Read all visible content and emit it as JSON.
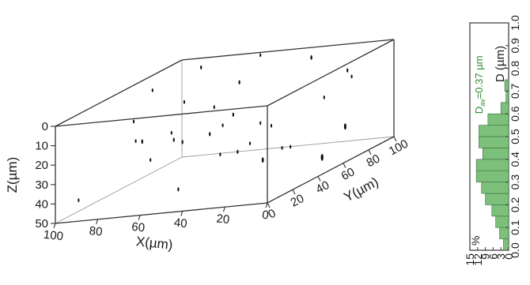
{
  "chart_data": [
    {
      "type": "scatter",
      "subtype": "3d-box",
      "axes": {
        "x": {
          "label": "X(µm)",
          "range": [
            0,
            100
          ],
          "ticks": [
            100,
            80,
            60,
            40,
            20,
            0
          ]
        },
        "y": {
          "label": "Y(µm)",
          "range": [
            0,
            100
          ],
          "ticks": [
            0,
            20,
            40,
            60,
            80,
            100
          ]
        },
        "z": {
          "label": "Z(µm)",
          "range": [
            0,
            50
          ],
          "ticks": [
            0,
            10,
            20,
            30,
            40,
            50
          ]
        }
      },
      "colors": {
        "points": "#111111",
        "box": "#333333"
      },
      "points": [
        {
          "x": 85,
          "y": 90,
          "z": 2,
          "s": 0.35
        },
        {
          "x": 30,
          "y": 85,
          "z": 1,
          "s": 0.45
        },
        {
          "x": 60,
          "y": 95,
          "z": 0,
          "s": 0.3
        },
        {
          "x": 55,
          "y": 70,
          "z": 6,
          "s": 0.4
        },
        {
          "x": 90,
          "y": 60,
          "z": 3,
          "s": 0.3
        },
        {
          "x": 10,
          "y": 80,
          "z": 8,
          "s": 0.35
        },
        {
          "x": 75,
          "y": 20,
          "z": 7,
          "s": 0.3
        },
        {
          "x": 68,
          "y": 40,
          "z": 24,
          "s": 0.35
        },
        {
          "x": 65,
          "y": 10,
          "z": 15,
          "s": 0.45
        },
        {
          "x": 80,
          "y": 30,
          "z": 20,
          "s": 0.3
        },
        {
          "x": 60,
          "y": 55,
          "z": 27,
          "s": 0.4
        },
        {
          "x": 52,
          "y": 20,
          "z": 20,
          "s": 0.4
        },
        {
          "x": 40,
          "y": 40,
          "z": 14,
          "s": 0.35
        },
        {
          "x": 25,
          "y": 45,
          "z": 23,
          "s": 0.3
        },
        {
          "x": 15,
          "y": 70,
          "z": 18,
          "s": 0.3
        },
        {
          "x": 20,
          "y": 10,
          "z": 25,
          "s": 0.35
        },
        {
          "x": 10,
          "y": 35,
          "z": 32,
          "s": 0.3
        },
        {
          "x": 85,
          "y": 50,
          "z": 36,
          "s": 0.3
        },
        {
          "x": 50,
          "y": 70,
          "z": 38,
          "s": 0.3
        },
        {
          "x": 45,
          "y": 5,
          "z": 40,
          "s": 0.35
        },
        {
          "x": 70,
          "y": 80,
          "z": 45,
          "s": 0.3
        },
        {
          "x": 20,
          "y": 95,
          "z": 41,
          "s": 0.7
        },
        {
          "x": 10,
          "y": 60,
          "z": 46,
          "s": 0.8
        },
        {
          "x": 35,
          "y": 55,
          "z": 43,
          "s": 0.55
        },
        {
          "x": 60,
          "y": 95,
          "z": 35,
          "s": 0.3
        },
        {
          "x": 90,
          "y": 75,
          "z": 30,
          "s": 0.3
        },
        {
          "x": 5,
          "y": 75,
          "z": 10,
          "s": 0.3
        },
        {
          "x": 40,
          "y": 25,
          "z": 5,
          "s": 0.3
        },
        {
          "x": 30,
          "y": 15,
          "z": 12,
          "s": 0.3
        },
        {
          "x": 78,
          "y": 65,
          "z": 12,
          "s": 0.3
        },
        {
          "x": 5,
          "y": 20,
          "z": 28,
          "s": 0.3
        },
        {
          "x": 95,
          "y": 10,
          "z": 42,
          "s": 0.3
        }
      ]
    },
    {
      "type": "bar",
      "orientation": "horizontal",
      "category_axis": {
        "label": "D (µm)",
        "range": [
          0.0,
          1.0
        ],
        "ticks": [
          "0.0",
          "0.1",
          "0.2",
          "0.3",
          "0.4",
          "0.5",
          "0.6",
          "0.7",
          "0.8",
          "0.9",
          "1.0"
        ]
      },
      "value_axis": {
        "label": "%",
        "range": [
          0,
          15
        ],
        "ticks": [
          "15",
          "12",
          "9",
          "6",
          "3",
          "0"
        ]
      },
      "bin_width": 0.05,
      "bins": [
        {
          "D": 0.025,
          "pct": 2.0
        },
        {
          "D": 0.075,
          "pct": 3.5
        },
        {
          "D": 0.125,
          "pct": 5.0
        },
        {
          "D": 0.175,
          "pct": 6.5
        },
        {
          "D": 0.225,
          "pct": 9.0
        },
        {
          "D": 0.275,
          "pct": 10.5
        },
        {
          "D": 0.325,
          "pct": 12.5
        },
        {
          "D": 0.375,
          "pct": 12.5
        },
        {
          "D": 0.425,
          "pct": 10.0
        },
        {
          "D": 0.475,
          "pct": 11.5
        },
        {
          "D": 0.525,
          "pct": 11.5
        },
        {
          "D": 0.575,
          "pct": 8.0
        },
        {
          "D": 0.625,
          "pct": 3.0
        },
        {
          "D": 0.675,
          "pct": 1.0
        },
        {
          "D": 0.725,
          "pct": 1.5
        }
      ],
      "annotation": {
        "main": "D",
        "subscript": "av",
        "text": "=0.37 µm"
      },
      "colors": {
        "bar": "#7cc07c",
        "bar_edge": "#3d6b3d",
        "annotation": "#2f8a2f"
      }
    }
  ]
}
